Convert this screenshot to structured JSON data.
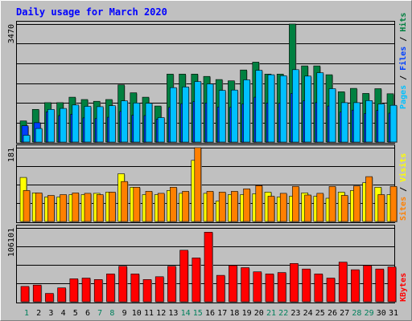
{
  "chart_data": [
    {
      "type": "bar",
      "title": "Daily usage for March 2020",
      "ymax_label": "3470",
      "ylim": [
        0,
        3470
      ],
      "grid": true,
      "legend": {
        "parts": [
          "Pages",
          "Files",
          "Hits"
        ],
        "colors": [
          "#00c0ff",
          "#0040ff",
          "#008040"
        ],
        "placement": "right"
      },
      "categories": [
        "1",
        "2",
        "3",
        "4",
        "5",
        "6",
        "7",
        "8",
        "9",
        "10",
        "11",
        "12",
        "13",
        "14",
        "15",
        "16",
        "17",
        "18",
        "19",
        "20",
        "21",
        "22",
        "23",
        "24",
        "25",
        "26",
        "27",
        "28",
        "29",
        "30",
        "31"
      ],
      "weekend_days": [
        "1",
        "7",
        "8",
        "14",
        "15",
        "21",
        "22",
        "28",
        "29"
      ],
      "series": [
        {
          "name": "Hits",
          "color": "#008040",
          "values": [
            620,
            960,
            1160,
            1160,
            1320,
            1250,
            1200,
            1250,
            1680,
            1450,
            1320,
            1060,
            2000,
            2000,
            2000,
            1930,
            1840,
            1800,
            2120,
            2350,
            2000,
            2000,
            3470,
            2240,
            2240,
            1980,
            1480,
            1580,
            1430,
            1570,
            1420
          ]
        },
        {
          "name": "Files",
          "color": "#0040ff",
          "values": [
            480,
            570,
            890,
            780,
            820,
            710,
            690,
            730,
            900,
            790,
            780,
            670,
            1020,
            1130,
            1190,
            1150,
            1030,
            1020,
            1120,
            1320,
            1150,
            1140,
            1430,
            1210,
            1160,
            1060,
            880,
            940,
            840,
            930,
            850
          ]
        },
        {
          "name": "Pages",
          "color": "#00c0ff",
          "values": [
            200,
            400,
            960,
            990,
            1090,
            1050,
            1040,
            1070,
            1210,
            1150,
            1140,
            720,
            1600,
            1620,
            1780,
            1710,
            1520,
            1530,
            1830,
            2110,
            1980,
            1950,
            2130,
            1940,
            2040,
            1570,
            1160,
            1160,
            1220,
            1120,
            1080
          ]
        }
      ]
    },
    {
      "type": "bar",
      "ymax_label": "181",
      "ylim": [
        0,
        181
      ],
      "legend": {
        "parts": [
          "Sites",
          "Visits"
        ],
        "colors": [
          "#ff8000",
          "#ffff00"
        ],
        "placement": "right"
      },
      "categories": [
        "1",
        "2",
        "3",
        "4",
        "5",
        "6",
        "7",
        "8",
        "9",
        "10",
        "11",
        "12",
        "13",
        "14",
        "15",
        "16",
        "17",
        "18",
        "19",
        "20",
        "21",
        "22",
        "23",
        "24",
        "25",
        "26",
        "27",
        "28",
        "29",
        "30",
        "31"
      ],
      "series": [
        {
          "name": "Visits",
          "color": "#ffff00",
          "values": [
            108,
            70,
            60,
            60,
            66,
            66,
            69,
            72,
            117,
            84,
            66,
            66,
            76,
            69,
            150,
            69,
            50,
            66,
            66,
            68,
            72,
            60,
            62,
            70,
            62,
            57,
            72,
            76,
            95,
            84,
            66
          ]
        },
        {
          "name": "Sites",
          "color": "#ff8000",
          "values": [
            76,
            70,
            64,
            66,
            70,
            69,
            66,
            72,
            98,
            84,
            74,
            69,
            84,
            74,
            181,
            74,
            72,
            74,
            80,
            88,
            62,
            69,
            86,
            65,
            69,
            86,
            64,
            87,
            110,
            66,
            86
          ]
        }
      ]
    },
    {
      "type": "bar",
      "ymax_label": "106101",
      "ylim": [
        0,
        106101
      ],
      "legend": {
        "parts": [
          "KBytes"
        ],
        "colors": [
          "#ff0000"
        ],
        "placement": "right"
      },
      "categories": [
        "1",
        "2",
        "3",
        "4",
        "5",
        "6",
        "7",
        "8",
        "9",
        "10",
        "11",
        "12",
        "13",
        "14",
        "15",
        "16",
        "17",
        "18",
        "19",
        "20",
        "21",
        "22",
        "23",
        "24",
        "25",
        "26",
        "27",
        "28",
        "29",
        "30",
        "31"
      ],
      "series": [
        {
          "name": "KBytes",
          "color": "#ff0000",
          "values": [
            22000,
            24000,
            12000,
            20000,
            33000,
            34000,
            32000,
            40000,
            51000,
            40000,
            32000,
            36000,
            51000,
            74000,
            63000,
            100000,
            38000,
            52000,
            49000,
            43000,
            40000,
            42000,
            55000,
            47000,
            40000,
            34000,
            57000,
            46000,
            52000,
            47000,
            50000
          ]
        }
      ]
    }
  ]
}
